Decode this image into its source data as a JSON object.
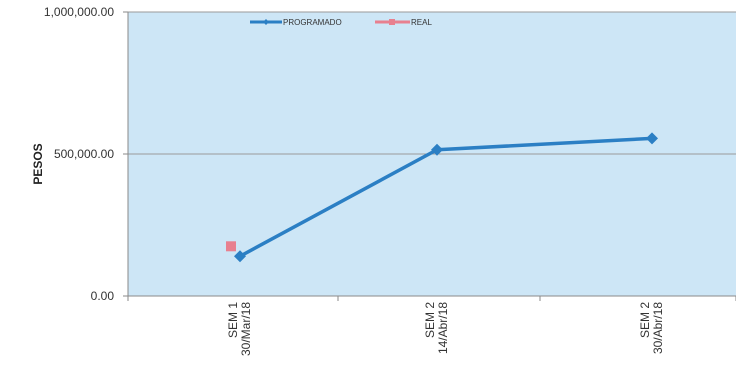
{
  "chart_data": {
    "type": "line",
    "title": "",
    "xlabel": "",
    "ylabel": "PESOS",
    "ylim": [
      0,
      1000000
    ],
    "yticks": [
      "0.00",
      "500,000.00",
      "1,000,000.00"
    ],
    "categories": [
      [
        "SEM 1",
        "30/Mar/18"
      ],
      [
        "SEM 2",
        "14/Abr/18"
      ],
      [
        "SEM 2",
        "30/Abr/18"
      ]
    ],
    "series": [
      {
        "name": "PROGRAMADO",
        "values": [
          140000,
          515000,
          555000
        ],
        "color": "#2b7fc4"
      },
      {
        "name": "REAL",
        "values": [
          175000,
          null,
          null
        ],
        "color": "#e8808f"
      }
    ],
    "grid": true,
    "legend": "top-center",
    "plot_background": "#cde6f6"
  }
}
